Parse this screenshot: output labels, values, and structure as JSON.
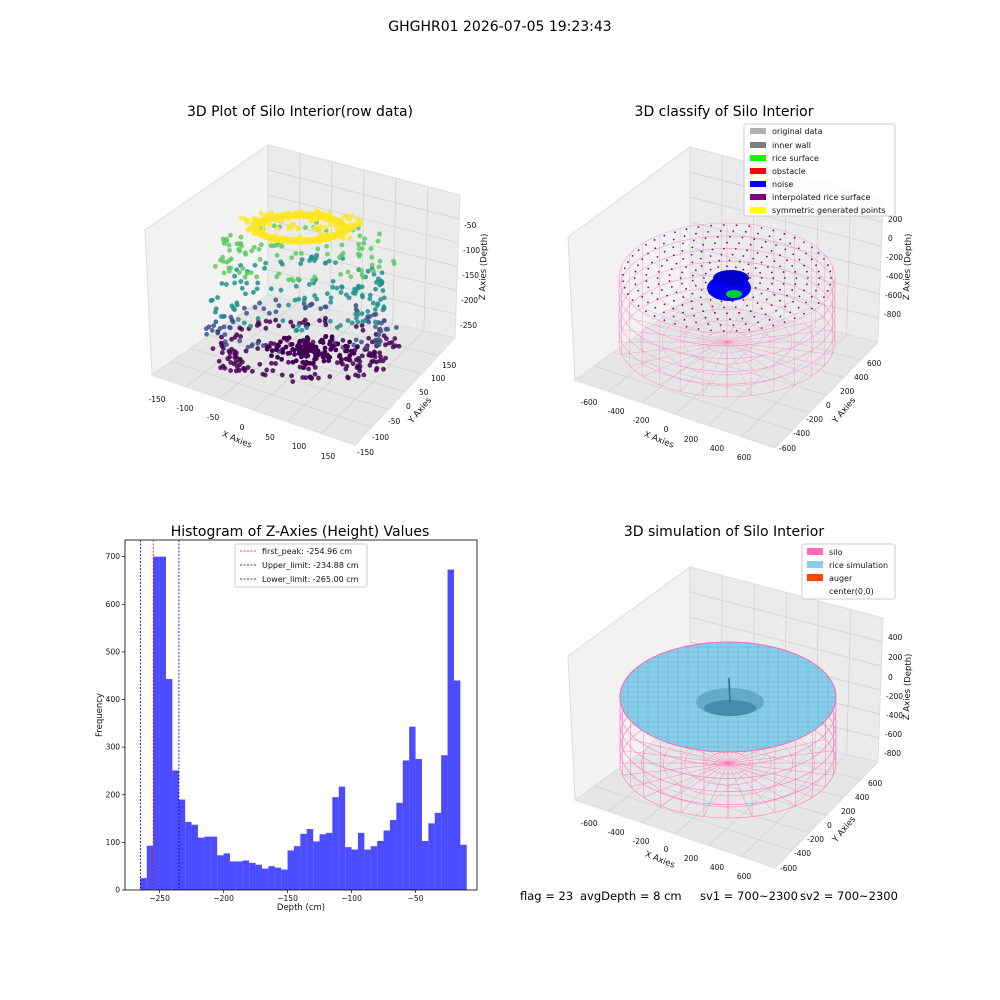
{
  "suptitle": "GHGHR01 2026-07-05 19:23:43",
  "footer": {
    "flag": "flag = 23",
    "avg_depth": "avgDepth = 8 cm",
    "sv1": "sv1 = 700~2300",
    "sv2": "sv2 = 700~2300"
  },
  "panel1": {
    "title": "3D Plot of Silo Interior(row data)",
    "x_label": "X Axies",
    "y_label": "Y Axies",
    "z_label": "Z Axies (Depth)",
    "x_ticks": [
      "-150",
      "-100",
      "-50",
      "0",
      "50",
      "100",
      "150"
    ],
    "y_ticks": [
      "150",
      "100",
      "50",
      "0",
      "-50",
      "-100",
      "-150"
    ],
    "z_ticks": [
      "-50",
      "-100",
      "-150",
      "-200",
      "-250"
    ],
    "colormap": [
      "#440154",
      "#3b528b",
      "#21918c",
      "#5ec962",
      "#fde725"
    ]
  },
  "panel2": {
    "title": "3D classify of Silo Interior",
    "x_label": "X Axies",
    "y_label": "Y Axies",
    "z_label": "Z Axies (Depth)",
    "x_ticks": [
      "-600",
      "-400",
      "-200",
      "0",
      "200",
      "400",
      "600"
    ],
    "y_ticks": [
      "600",
      "400",
      "200",
      "0",
      "-200",
      "-400",
      "-600"
    ],
    "z_ticks": [
      "200",
      "0",
      "-200",
      "-400",
      "-600",
      "-800"
    ],
    "legend": [
      {
        "label": "original data",
        "color": "#b0b0b0"
      },
      {
        "label": "inner wall",
        "color": "#808080"
      },
      {
        "label": "rice surface",
        "color": "#00ff00"
      },
      {
        "label": "obstacle",
        "color": "#ff0000"
      },
      {
        "label": "noise",
        "color": "#0000ff"
      },
      {
        "label": "interpolated rice surface",
        "color": "#800080"
      },
      {
        "label": "symmetric generated points",
        "color": "#ffff00"
      }
    ]
  },
  "panel4": {
    "title": "3D simulation of Silo Interior",
    "x_label": "X Axies",
    "y_label": "Y Axies",
    "z_label": "Z Axies (Depth)",
    "x_ticks": [
      "-600",
      "-400",
      "-200",
      "0",
      "200",
      "400",
      "600"
    ],
    "y_ticks": [
      "600",
      "400",
      "200",
      "0",
      "-200",
      "-400",
      "-600"
    ],
    "z_ticks": [
      "400",
      "200",
      "0",
      "-200",
      "-400",
      "-600",
      "-800"
    ],
    "legend": [
      {
        "label": "silo",
        "color": "#ff69b4"
      },
      {
        "label": "rice simulation",
        "color": "#87ceeb"
      },
      {
        "label": "auger",
        "color": "#ff4500"
      },
      {
        "label": "center(0,0)",
        "color": "#ffffff"
      }
    ]
  },
  "chart_data": {
    "type": "bar",
    "title": "Histogram of Z-Axies (Height) Values",
    "xlabel": "Depth (cm)",
    "ylabel": "Frequency",
    "xlim": [
      -277,
      -2
    ],
    "ylim": [
      0,
      735
    ],
    "x_ticks": [
      -250,
      -200,
      -150,
      -100,
      -50
    ],
    "y_ticks": [
      0,
      100,
      200,
      300,
      400,
      500,
      600,
      700
    ],
    "bar_color": "#0000ff",
    "bin_start": -265,
    "bin_width": 5,
    "values": [
      25,
      93,
      700,
      700,
      443,
      251,
      190,
      143,
      137,
      110,
      112,
      112,
      73,
      77,
      60,
      60,
      62,
      57,
      53,
      45,
      50,
      47,
      43,
      83,
      92,
      118,
      128,
      102,
      117,
      120,
      195,
      217,
      90,
      85,
      120,
      85,
      92,
      103,
      125,
      147,
      183,
      272,
      343,
      275,
      103,
      140,
      162,
      283,
      673,
      440,
      95
    ],
    "vlines": [
      {
        "label": "first_peak: -254.96 cm",
        "x": -254.96,
        "color": "#ff0000"
      },
      {
        "label": "Upper_limit: -234.88 cm",
        "x": -234.88,
        "color": "#0000aa"
      },
      {
        "label": "Lower_limit: -265.00 cm",
        "x": -265.0,
        "color": "#0000aa"
      }
    ]
  }
}
